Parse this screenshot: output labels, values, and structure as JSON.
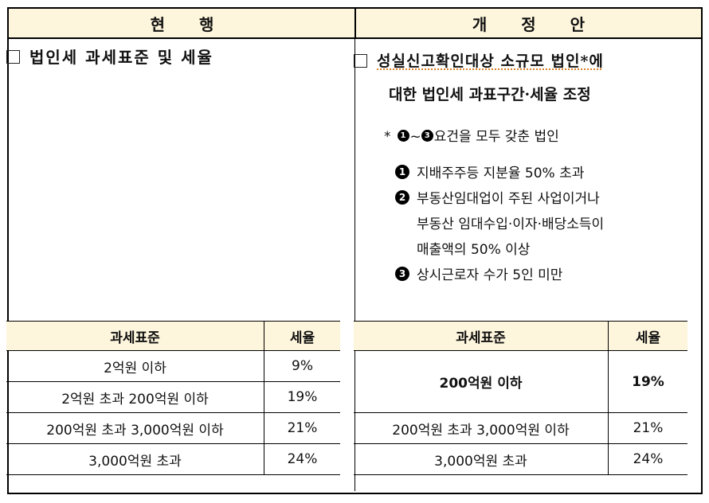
{
  "header": {
    "left": "현  행",
    "right": "개 정 안"
  },
  "left": {
    "title": "법인세 과세표준 및 세율",
    "table": {
      "headers": [
        "과세표준",
        "세율"
      ],
      "rows": [
        [
          "2억원 이하",
          "9%"
        ],
        [
          "2억원 초과 200억원 이하",
          "19%"
        ],
        [
          "200억원 초과 3,000억원 이하",
          "21%"
        ],
        [
          "3,000억원 초과",
          "24%"
        ]
      ]
    }
  },
  "right": {
    "title_line1": "성실신고확인대상 소규모 법인*에",
    "title_line2": "대한 법인세 과표구간·세율 조정",
    "req_note_prefix": "*",
    "req_note_text": "요건을 모두 갖춘 법인",
    "req_range": [
      "1",
      "~",
      "3"
    ],
    "conditions": [
      {
        "num": "1",
        "text": "지배주주등 지분율 50% 초과"
      },
      {
        "num": "2",
        "text": "부동산임대업이 주된 사업이거나"
      },
      {
        "num": "3",
        "text": "상시근로자 수가 5인 미만"
      }
    ],
    "condition2_cont": [
      "부동산 임대수입·이자·배당소득이",
      "매출액의 50% 이상"
    ],
    "table": {
      "headers": [
        "과세표준",
        "세율"
      ],
      "rows": [
        [
          "200억원 이하",
          "19%"
        ],
        [
          "200억원 초과 3,000억원 이하",
          "21%"
        ],
        [
          "3,000억원 초과",
          "24%"
        ]
      ]
    }
  }
}
